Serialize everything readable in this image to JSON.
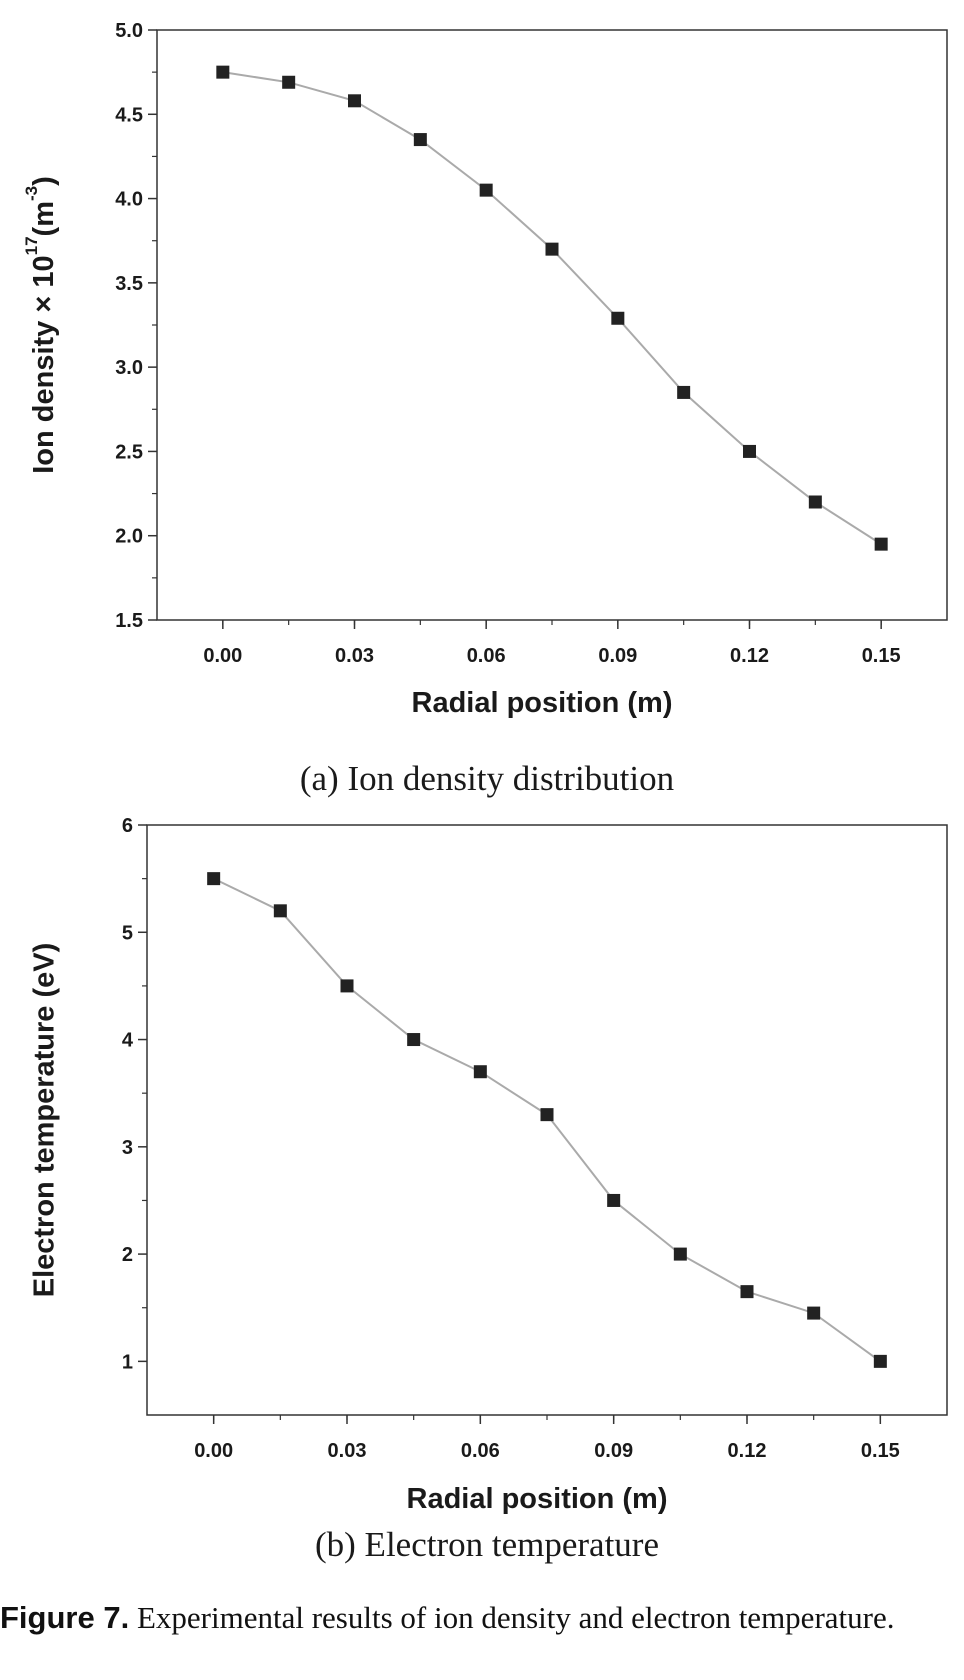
{
  "chart_data": [
    {
      "type": "line",
      "subcaption": "(a) Ion density distribution",
      "xlabel": "Radial position (m)",
      "ylabel_main": "Ion density × 10",
      "ylabel_sup1": "17",
      "ylabel_mid": "(m",
      "ylabel_sup2": "-3",
      "ylabel_end": ")",
      "xlim": [
        -0.015,
        0.165
      ],
      "ylim": [
        1.5,
        5.0
      ],
      "x_ticks": [
        "0.00",
        "0.03",
        "0.06",
        "0.09",
        "0.12",
        "0.15"
      ],
      "y_ticks": [
        "1.5",
        "2.0",
        "2.5",
        "3.0",
        "3.5",
        "4.0",
        "4.5",
        "5.0"
      ],
      "x": [
        0.0,
        0.015,
        0.03,
        0.045,
        0.06,
        0.075,
        0.09,
        0.105,
        0.12,
        0.135,
        0.15
      ],
      "y": [
        4.75,
        4.69,
        4.58,
        4.35,
        4.05,
        3.7,
        3.29,
        2.85,
        2.5,
        2.2,
        1.95
      ],
      "marker": "square",
      "marker_color": "#222222",
      "line_color": "#aaaaaa"
    },
    {
      "type": "line",
      "subcaption": "(b) Electron temperature",
      "xlabel": "Radial position (m)",
      "ylabel": "Electron temperature (eV)",
      "xlim": [
        -0.015,
        0.165
      ],
      "ylim": [
        0.5,
        6.0
      ],
      "x_ticks": [
        "0.00",
        "0.03",
        "0.06",
        "0.09",
        "0.12",
        "0.15"
      ],
      "y_ticks": [
        "1",
        "2",
        "3",
        "4",
        "5",
        "6"
      ],
      "x": [
        0.0,
        0.015,
        0.03,
        0.045,
        0.06,
        0.075,
        0.09,
        0.105,
        0.12,
        0.135,
        0.15
      ],
      "y": [
        5.5,
        5.2,
        4.5,
        4.0,
        3.7,
        3.3,
        2.5,
        2.0,
        1.65,
        1.45,
        1.0
      ],
      "marker": "square",
      "marker_color": "#222222",
      "line_color": "#aaaaaa"
    }
  ],
  "caption": {
    "label": "Figure 7.",
    "text": " Experimental results of ion density and electron temperature."
  }
}
